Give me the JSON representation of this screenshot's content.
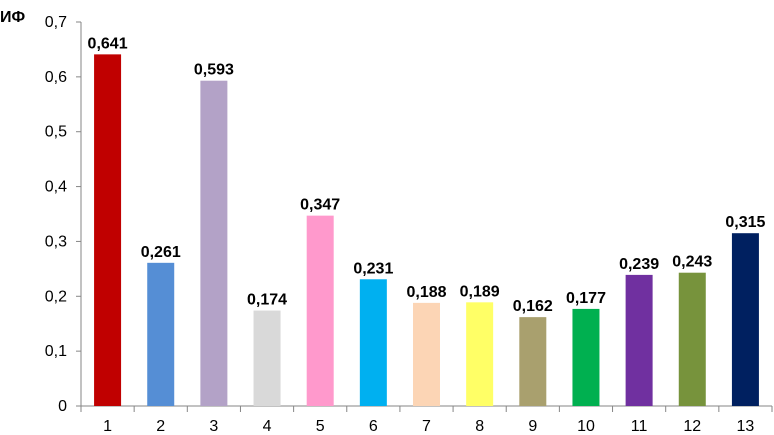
{
  "chart_data": {
    "type": "bar",
    "ylabel": "ИФ",
    "categories": [
      "1",
      "2",
      "3",
      "4",
      "5",
      "6",
      "7",
      "8",
      "9",
      "10",
      "11",
      "12",
      "13"
    ],
    "values": [
      0.641,
      0.261,
      0.593,
      0.174,
      0.347,
      0.231,
      0.188,
      0.189,
      0.162,
      0.177,
      0.239,
      0.243,
      0.315
    ],
    "value_labels": [
      "0,641",
      "0,261",
      "0,593",
      "0,174",
      "0,347",
      "0,231",
      "0,188",
      "0,189",
      "0,162",
      "0,177",
      "0,239",
      "0,243",
      "0,315"
    ],
    "colors": [
      "#c00000",
      "#558ed5",
      "#b3a2c7",
      "#d9d9d9",
      "#ff99cc",
      "#00b0f0",
      "#fcd5b5",
      "#ffff66",
      "#a9a06e",
      "#00b050",
      "#7030a0",
      "#77933c",
      "#002060"
    ],
    "ylim": [
      0,
      0.7
    ],
    "y_ticks": [
      0,
      0.1,
      0.2,
      0.3,
      0.4,
      0.5,
      0.6,
      0.7
    ],
    "y_tick_labels": [
      "0",
      "0,1",
      "0,2",
      "0,3",
      "0,4",
      "0,5",
      "0,6",
      "0,7"
    ],
    "grid": false,
    "legend": "none"
  }
}
